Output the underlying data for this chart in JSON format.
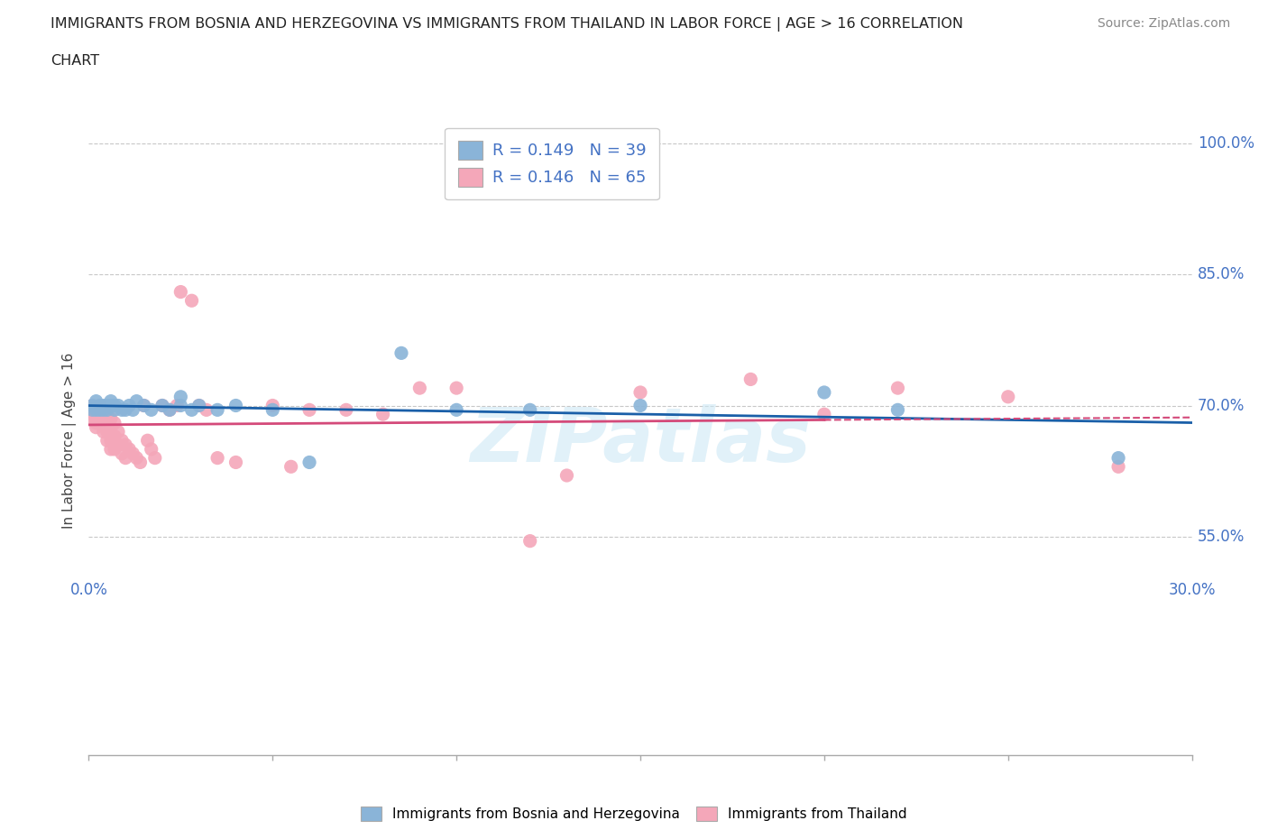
{
  "title_line1": "IMMIGRANTS FROM BOSNIA AND HERZEGOVINA VS IMMIGRANTS FROM THAILAND IN LABOR FORCE | AGE > 16 CORRELATION",
  "title_line2": "CHART",
  "source": "Source: ZipAtlas.com",
  "ylabel_label": "In Labor Force | Age > 16",
  "color_bosnia": "#8ab4d8",
  "color_thailand": "#f4a7b9",
  "trendline_color_bosnia": "#1a5fa8",
  "trendline_color_thailand": "#d44a7a",
  "R_bosnia": 0.149,
  "N_bosnia": 39,
  "R_thailand": 0.146,
  "N_thailand": 65,
  "watermark": "ZIPatlas",
  "bosnia_points": [
    [
      0.001,
      0.7
    ],
    [
      0.001,
      0.695
    ],
    [
      0.002,
      0.705
    ],
    [
      0.002,
      0.695
    ],
    [
      0.003,
      0.7
    ],
    [
      0.003,
      0.695
    ],
    [
      0.004,
      0.7
    ],
    [
      0.004,
      0.695
    ],
    [
      0.005,
      0.7
    ],
    [
      0.005,
      0.695
    ],
    [
      0.006,
      0.7
    ],
    [
      0.006,
      0.705
    ],
    [
      0.007,
      0.695
    ],
    [
      0.007,
      0.7
    ],
    [
      0.008,
      0.7
    ],
    [
      0.009,
      0.695
    ],
    [
      0.01,
      0.695
    ],
    [
      0.011,
      0.7
    ],
    [
      0.012,
      0.695
    ],
    [
      0.013,
      0.705
    ],
    [
      0.015,
      0.7
    ],
    [
      0.017,
      0.695
    ],
    [
      0.02,
      0.7
    ],
    [
      0.022,
      0.695
    ],
    [
      0.025,
      0.71
    ],
    [
      0.025,
      0.7
    ],
    [
      0.028,
      0.695
    ],
    [
      0.03,
      0.7
    ],
    [
      0.035,
      0.695
    ],
    [
      0.04,
      0.7
    ],
    [
      0.05,
      0.695
    ],
    [
      0.06,
      0.635
    ],
    [
      0.085,
      0.76
    ],
    [
      0.1,
      0.695
    ],
    [
      0.12,
      0.695
    ],
    [
      0.15,
      0.7
    ],
    [
      0.2,
      0.715
    ],
    [
      0.22,
      0.695
    ],
    [
      0.28,
      0.64
    ]
  ],
  "thailand_points": [
    [
      0.001,
      0.7
    ],
    [
      0.001,
      0.695
    ],
    [
      0.001,
      0.69
    ],
    [
      0.001,
      0.685
    ],
    [
      0.002,
      0.695
    ],
    [
      0.002,
      0.69
    ],
    [
      0.002,
      0.68
    ],
    [
      0.002,
      0.675
    ],
    [
      0.003,
      0.7
    ],
    [
      0.003,
      0.695
    ],
    [
      0.003,
      0.685
    ],
    [
      0.003,
      0.68
    ],
    [
      0.004,
      0.695
    ],
    [
      0.004,
      0.685
    ],
    [
      0.004,
      0.68
    ],
    [
      0.004,
      0.67
    ],
    [
      0.005,
      0.69
    ],
    [
      0.005,
      0.68
    ],
    [
      0.005,
      0.67
    ],
    [
      0.005,
      0.66
    ],
    [
      0.006,
      0.685
    ],
    [
      0.006,
      0.675
    ],
    [
      0.006,
      0.66
    ],
    [
      0.006,
      0.65
    ],
    [
      0.007,
      0.68
    ],
    [
      0.007,
      0.665
    ],
    [
      0.007,
      0.65
    ],
    [
      0.008,
      0.67
    ],
    [
      0.008,
      0.655
    ],
    [
      0.009,
      0.66
    ],
    [
      0.009,
      0.645
    ],
    [
      0.01,
      0.655
    ],
    [
      0.01,
      0.64
    ],
    [
      0.011,
      0.65
    ],
    [
      0.012,
      0.645
    ],
    [
      0.013,
      0.64
    ],
    [
      0.014,
      0.635
    ],
    [
      0.015,
      0.7
    ],
    [
      0.016,
      0.66
    ],
    [
      0.017,
      0.65
    ],
    [
      0.018,
      0.64
    ],
    [
      0.02,
      0.7
    ],
    [
      0.022,
      0.695
    ],
    [
      0.024,
      0.7
    ],
    [
      0.025,
      0.83
    ],
    [
      0.028,
      0.82
    ],
    [
      0.03,
      0.7
    ],
    [
      0.032,
      0.695
    ],
    [
      0.035,
      0.64
    ],
    [
      0.04,
      0.635
    ],
    [
      0.05,
      0.7
    ],
    [
      0.055,
      0.63
    ],
    [
      0.06,
      0.695
    ],
    [
      0.07,
      0.695
    ],
    [
      0.08,
      0.69
    ],
    [
      0.09,
      0.72
    ],
    [
      0.1,
      0.72
    ],
    [
      0.12,
      0.545
    ],
    [
      0.13,
      0.62
    ],
    [
      0.15,
      0.715
    ],
    [
      0.18,
      0.73
    ],
    [
      0.2,
      0.69
    ],
    [
      0.22,
      0.72
    ],
    [
      0.25,
      0.71
    ],
    [
      0.28,
      0.63
    ]
  ],
  "xlim": [
    0.0,
    0.3
  ],
  "ylim": [
    0.3,
    1.02
  ],
  "ytick_positions": [
    0.55,
    0.7,
    0.85,
    1.0
  ],
  "ytick_labels": [
    "55.0%",
    "70.0%",
    "85.0%",
    "100.0%"
  ],
  "hline_values": [
    1.0,
    0.85,
    0.7,
    0.55
  ],
  "xtick_positions": [
    0.0,
    0.05,
    0.1,
    0.15,
    0.2,
    0.25,
    0.3
  ],
  "legend_bosnia_label": "Immigrants from Bosnia and Herzegovina",
  "legend_thailand_label": "Immigrants from Thailand"
}
